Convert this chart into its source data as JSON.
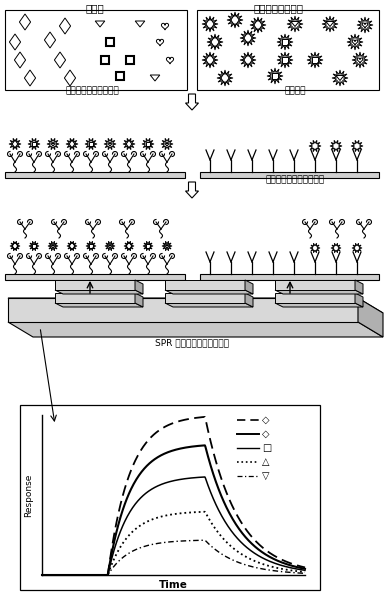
{
  "top_left_label": "待测物",
  "top_right_label": "凝血酶标记待测物",
  "mid_left_label": "相应适配体特异性识别",
  "mid_center_label": "竞争识别",
  "lower_label": "凝血酶适配体特异性识别",
  "spr_label": "SPR 芯片阵列或多探头阵列",
  "response_label": "Response",
  "time_label": "Time",
  "bg_color": "#ffffff"
}
